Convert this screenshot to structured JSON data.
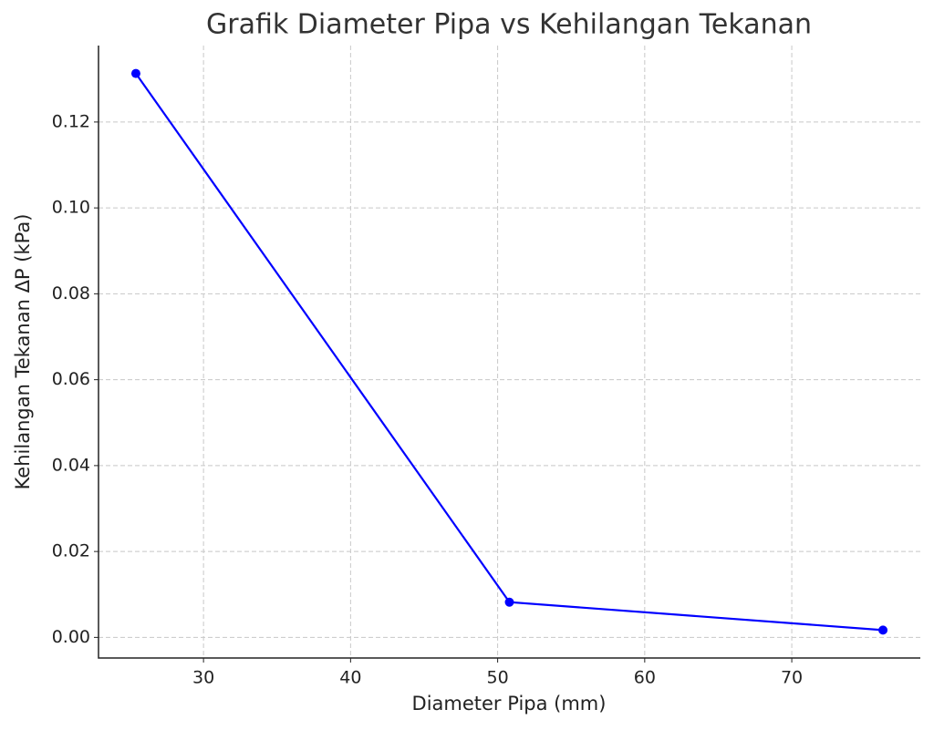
{
  "chart_data": {
    "type": "line",
    "title": "Grafik Diameter Pipa vs Kehilangan Tekanan",
    "xlabel": "Diameter Pipa (mm)",
    "ylabel": "Kehilangan Tekanan ΔP (kPa)",
    "x": [
      25.4,
      50.8,
      76.2
    ],
    "series": [
      {
        "color": "#0000ff",
        "values": [
          0.1313,
          0.0082,
          0.0017
        ]
      }
    ],
    "xlim": [
      22.86,
      78.74
    ],
    "ylim": [
      -0.0048,
      0.1378
    ],
    "xticks": [
      30,
      40,
      50,
      60,
      70
    ],
    "yticks": [
      {
        "value": 0,
        "label": "0.00"
      },
      {
        "value": 0.02,
        "label": "0.02"
      },
      {
        "value": 0.04,
        "label": "0.04"
      },
      {
        "value": 0.06,
        "label": "0.06"
      },
      {
        "value": 0.08,
        "label": "0.08"
      },
      {
        "value": 0.1,
        "label": "0.10"
      },
      {
        "value": 0.12,
        "label": "0.12"
      }
    ],
    "grid": true
  }
}
